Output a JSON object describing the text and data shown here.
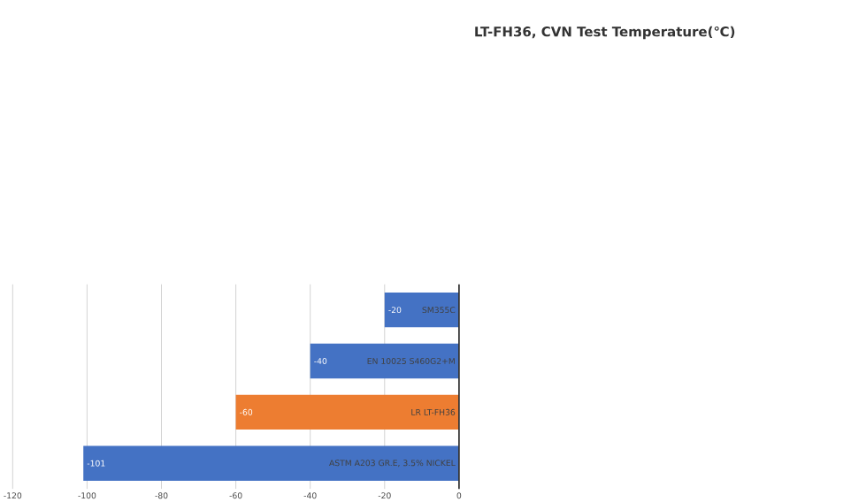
{
  "chart_data": {
    "type": "bar",
    "orientation": "horizontal",
    "title": "LT-FH36, CVN Test Temperature(℃)",
    "categories": [
      "SM355C",
      "EN 10025 S460G2+M",
      "LR LT-FH36",
      "ASTM A203 GR.E, 3.5% NICKEL"
    ],
    "values": [
      -20,
      -40,
      -60,
      -101
    ],
    "colors": [
      "#4472c4",
      "#4472c4",
      "#ed7d31",
      "#4472c4"
    ],
    "xlim": [
      -120,
      0
    ],
    "xticks": [
      -120,
      -100,
      -80,
      -60,
      -40,
      -20,
      0
    ],
    "grid": "x",
    "data_labels": true
  }
}
